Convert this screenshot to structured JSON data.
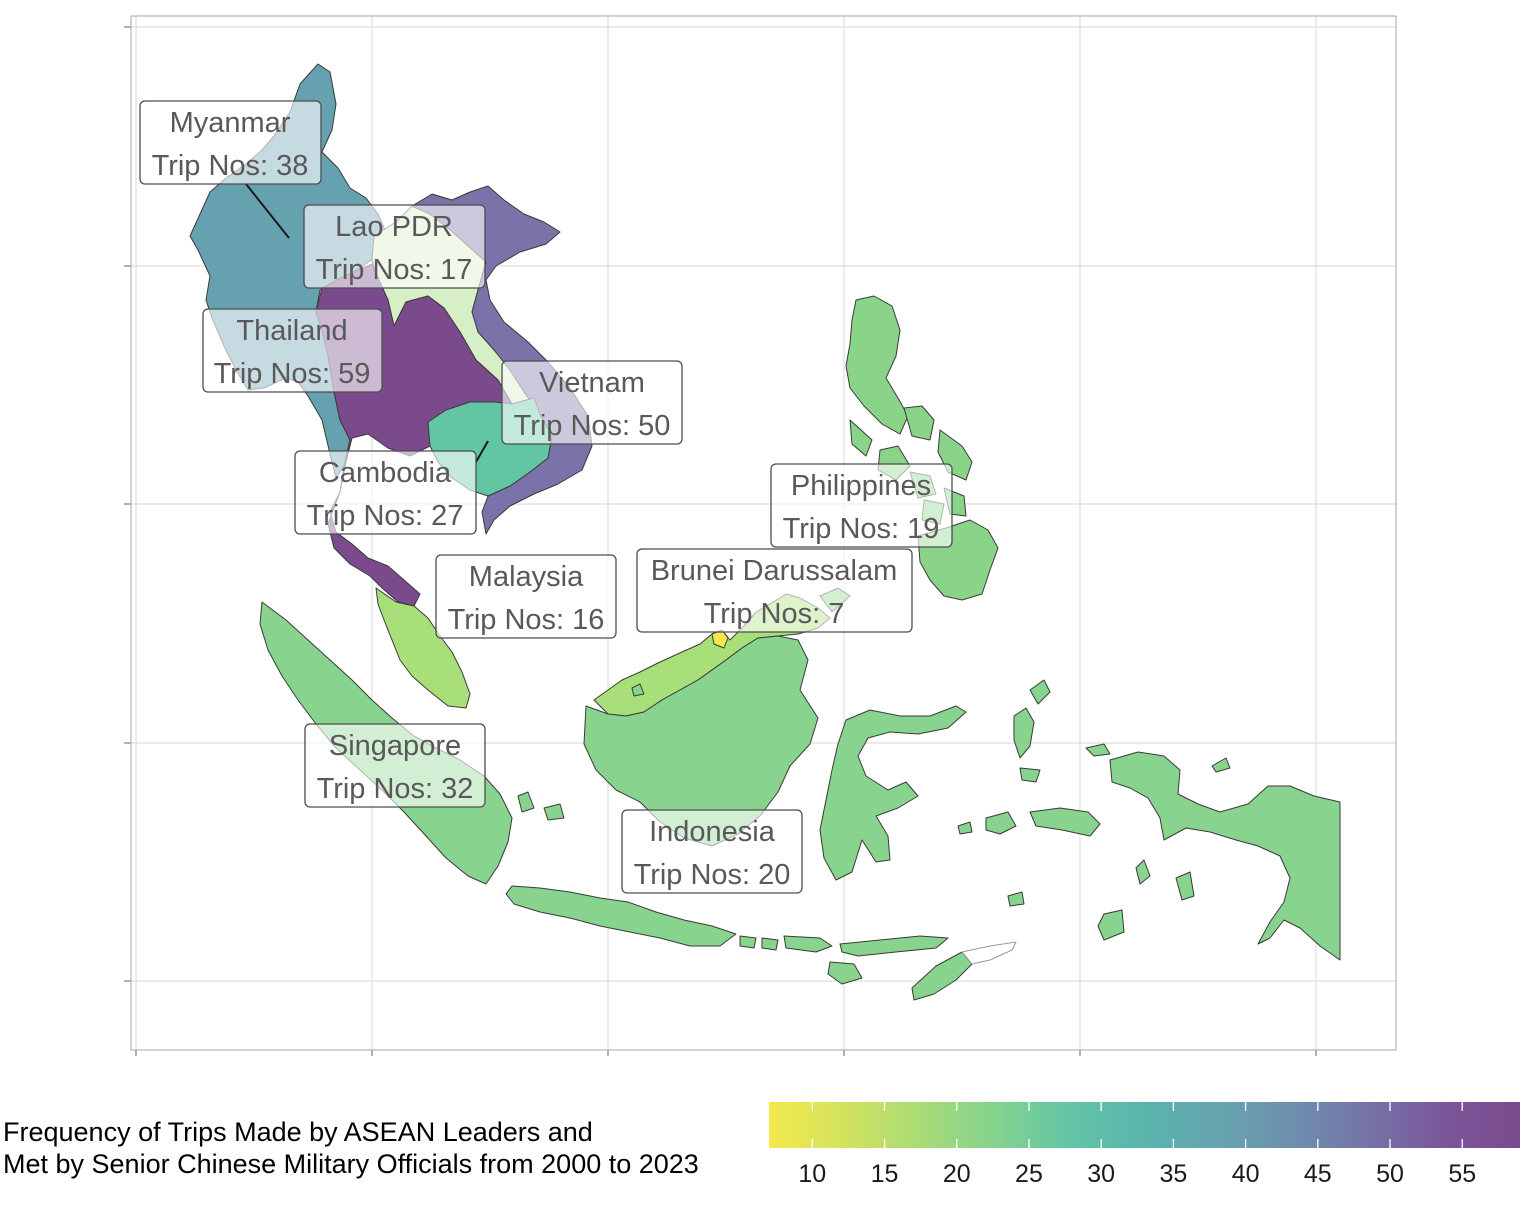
{
  "legend": {
    "title_line1": "Frequency of Trips Made by ASEAN Leaders and",
    "title_line2": "Met by Senior Chinese Military Officials from 2000 to 2023",
    "min": 7,
    "max": 59,
    "ticks": [
      10,
      15,
      20,
      25,
      30,
      35,
      40,
      45,
      50,
      55
    ],
    "palette": "viridis (reversed)",
    "colors": [
      "#f4e94c",
      "#d2e35e",
      "#a9db76",
      "#84d38e",
      "#63c4a6",
      "#5ab4ac",
      "#66a4af",
      "#6f8eae",
      "#7672a7",
      "#7b569a",
      "#7b4a8d"
    ]
  },
  "countries": [
    {
      "name": "Myanmar",
      "label_name": "Myanmar",
      "label_value": "Trip Nos: 38",
      "trips": 38,
      "fill": "#66a1b0"
    },
    {
      "name": "Lao PDR",
      "label_name": "Lao PDR",
      "label_value": "Trip Nos: 17",
      "trips": 17,
      "fill": "#d7efc6"
    },
    {
      "name": "Thailand",
      "label_name": "Thailand",
      "label_value": "Trip Nos: 59",
      "trips": 59,
      "fill": "#7b4a8d"
    },
    {
      "name": "Vietnam",
      "label_name": "Vietnam",
      "label_value": "Trip Nos: 50",
      "trips": 50,
      "fill": "#7a72a8"
    },
    {
      "name": "Cambodia",
      "label_name": "Cambodia",
      "label_value": "Trip Nos: 27",
      "trips": 27,
      "fill": "#62c6a4"
    },
    {
      "name": "Philippines",
      "label_name": "Philippines",
      "label_value": "Trip Nos: 19",
      "trips": 19,
      "fill": "#8ad48a"
    },
    {
      "name": "Brunei Darussalam",
      "label_name": "Brunei Darussalam",
      "label_value": "Trip Nos: 7",
      "trips": 7,
      "fill": "#f4e94c"
    },
    {
      "name": "Malaysia",
      "label_name": "Malaysia",
      "label_value": "Trip Nos: 16",
      "trips": 16,
      "fill": "#a9df79"
    },
    {
      "name": "Singapore",
      "label_name": "Singapore",
      "label_value": "Trip Nos: 32",
      "trips": 32,
      "fill": "#5eb8ad"
    },
    {
      "name": "Indonesia",
      "label_name": "Indonesia",
      "label_value": "Trip Nos: 20",
      "trips": 20,
      "fill": "#88d48e"
    }
  ],
  "timor_leste": {
    "fill": "#ffffff"
  }
}
